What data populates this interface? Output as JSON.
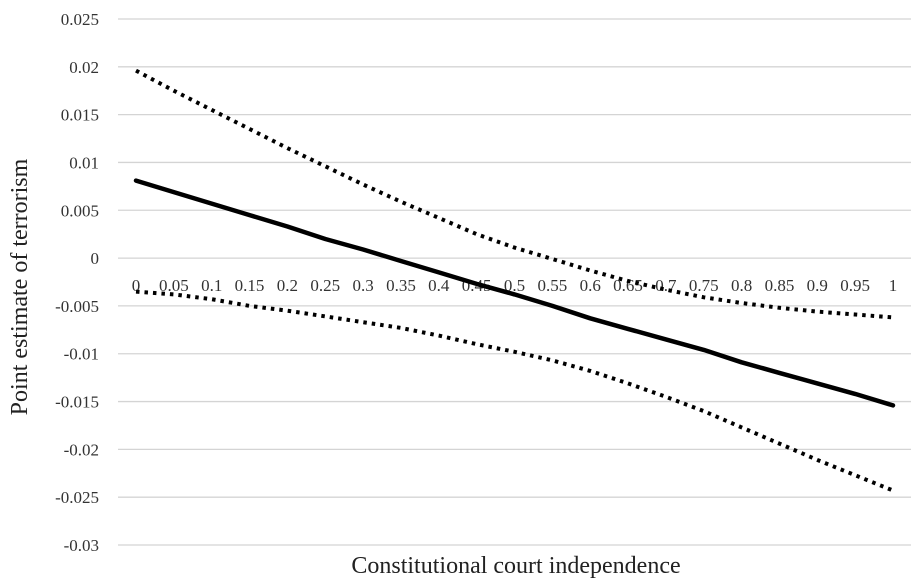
{
  "chart_data": {
    "type": "line",
    "title": "",
    "xlabel": "Constitutional court independence",
    "ylabel": "Point estimate of terrorism",
    "x": [
      0,
      0.05,
      0.1,
      0.15,
      0.2,
      0.25,
      0.3,
      0.35,
      0.4,
      0.45,
      0.5,
      0.55,
      0.6,
      0.65,
      0.7,
      0.75,
      0.8,
      0.85,
      0.9,
      0.95,
      1
    ],
    "x_tick_labels": [
      "0",
      "0.05",
      "0.1",
      "0.15",
      "0.2",
      "0.25",
      "0.3",
      "0.35",
      "0.4",
      "0.45",
      "0.5",
      "0.55",
      "0.6",
      "0.65",
      "0.7",
      "0.75",
      "0.8",
      "0.85",
      "0.9",
      "0.95",
      "1"
    ],
    "y_ticks": [
      0.025,
      0.02,
      0.015,
      0.01,
      0.005,
      0,
      -0.005,
      -0.01,
      -0.015,
      -0.02,
      -0.025,
      -0.03
    ],
    "y_tick_labels": [
      "0.025",
      "0.02",
      "0.015",
      "0.01",
      "0.005",
      "0",
      "-0.005",
      "-0.01",
      "-0.015",
      "-0.02",
      "-0.025",
      "-0.03"
    ],
    "ylim": [
      -0.03,
      0.025
    ],
    "grid": "horizontal",
    "legend": "none",
    "series": [
      {
        "style": "solid",
        "color": "#000000",
        "values": [
          0.0081,
          0.0069,
          0.0057,
          0.0045,
          0.0033,
          0.002,
          0.0009,
          -0.0003,
          -0.0015,
          -0.0027,
          -0.0038,
          -0.005,
          -0.0063,
          -0.0074,
          -0.0085,
          -0.0096,
          -0.0109,
          -0.012,
          -0.0131,
          -0.0142,
          -0.0154
        ]
      },
      {
        "style": "dotted",
        "color": "#000000",
        "values": [
          0.0196,
          0.0175,
          0.0155,
          0.0135,
          0.0115,
          0.0096,
          0.0077,
          0.0059,
          0.0042,
          0.0025,
          0.0011,
          -0.0001,
          -0.0013,
          -0.0024,
          -0.0033,
          -0.0041,
          -0.0047,
          -0.0052,
          -0.0056,
          -0.0059,
          -0.0062
        ]
      },
      {
        "style": "dotted",
        "color": "#000000",
        "values": [
          -0.0035,
          -0.0038,
          -0.0043,
          -0.005,
          -0.0055,
          -0.0061,
          -0.0067,
          -0.0073,
          -0.0081,
          -0.009,
          -0.0098,
          -0.0107,
          -0.0118,
          -0.0131,
          -0.0145,
          -0.016,
          -0.0177,
          -0.0194,
          -0.0211,
          -0.0227,
          -0.0243
        ]
      }
    ]
  }
}
